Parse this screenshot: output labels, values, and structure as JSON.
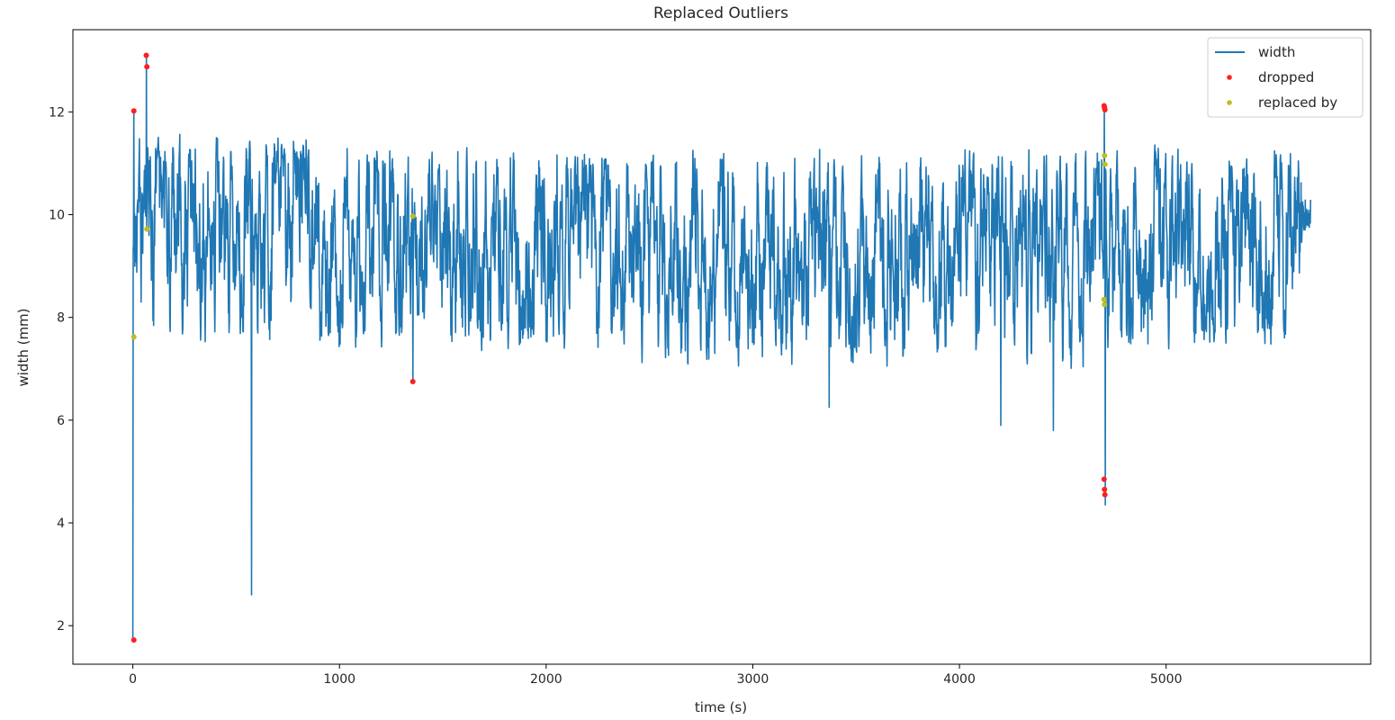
{
  "chart_data": {
    "type": "line",
    "title": "Replaced Outliers",
    "xlabel": "time (s)",
    "ylabel": "width (mm)",
    "xlim": [
      -290,
      5990
    ],
    "ylim": [
      1.25,
      13.6
    ],
    "xticks": [
      0,
      1000,
      2000,
      3000,
      4000,
      5000
    ],
    "yticks": [
      2,
      4,
      6,
      8,
      10,
      12
    ],
    "grid": false,
    "legend_position": "top-right",
    "series": [
      {
        "name": "width",
        "style": "line",
        "color": "#1f77b4",
        "x_start": 0,
        "x_end": 5700,
        "baseline_mean": 9.4,
        "baseline_low": 7.5,
        "baseline_high": 11.2,
        "spikes": [
          {
            "x": 0,
            "y": 1.7
          },
          {
            "x": 5,
            "y": 12.0
          },
          {
            "x": 65,
            "y": 13.1
          },
          {
            "x": 575,
            "y": 2.6
          },
          {
            "x": 1355,
            "y": 6.75
          },
          {
            "x": 3370,
            "y": 6.25
          },
          {
            "x": 4200,
            "y": 5.9
          },
          {
            "x": 4455,
            "y": 5.8
          },
          {
            "x": 4700,
            "y": 12.1
          },
          {
            "x": 4705,
            "y": 4.35
          }
        ]
      },
      {
        "name": "dropped",
        "style": "points",
        "color": "#ff1f1f",
        "points": [
          {
            "x": 5,
            "y": 12.02
          },
          {
            "x": 5,
            "y": 1.72
          },
          {
            "x": 65,
            "y": 13.1
          },
          {
            "x": 68,
            "y": 12.88
          },
          {
            "x": 1355,
            "y": 6.75
          },
          {
            "x": 4700,
            "y": 12.12
          },
          {
            "x": 4702,
            "y": 12.08
          },
          {
            "x": 4704,
            "y": 12.04
          },
          {
            "x": 4700,
            "y": 4.85
          },
          {
            "x": 4702,
            "y": 4.65
          },
          {
            "x": 4704,
            "y": 4.55
          }
        ]
      },
      {
        "name": "replaced by",
        "style": "points",
        "color": "#bcbd22",
        "points": [
          {
            "x": 5,
            "y": 7.62
          },
          {
            "x": 68,
            "y": 9.72
          },
          {
            "x": 1355,
            "y": 9.97
          },
          {
            "x": 4702,
            "y": 11.15
          },
          {
            "x": 4704,
            "y": 10.98
          },
          {
            "x": 4700,
            "y": 8.35
          },
          {
            "x": 4702,
            "y": 8.25
          }
        ]
      }
    ]
  }
}
